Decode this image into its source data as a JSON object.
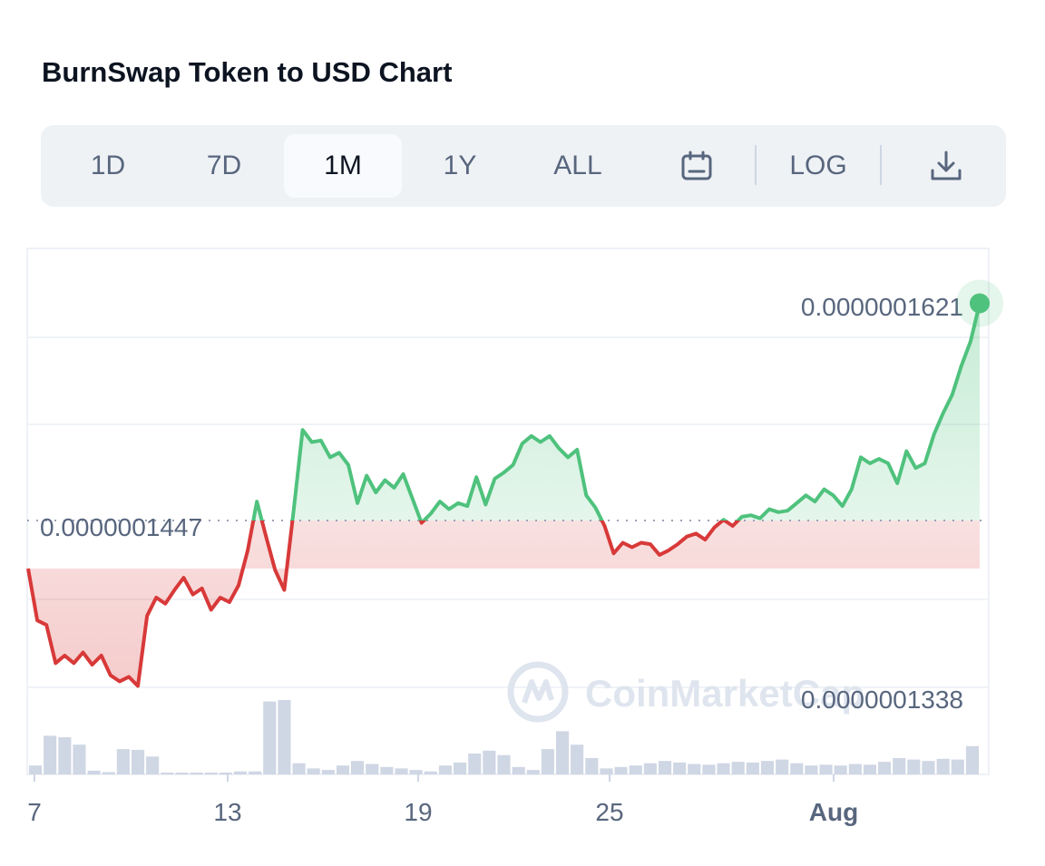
{
  "header": {
    "title": "BurnSwap Token to USD Chart"
  },
  "toolbar": {
    "ranges": [
      "1D",
      "7D",
      "1M",
      "1Y",
      "ALL"
    ],
    "active_range": "1M",
    "calendar_icon": "calendar-icon",
    "log_label": "LOG",
    "download_icon": "download-icon"
  },
  "chart_data": {
    "type": "area",
    "title": "BurnSwap Token to USD Chart",
    "x_tick_labels": [
      "7",
      "13",
      "19",
      "25",
      "Aug"
    ],
    "reference_label": "0.0000001447",
    "reference_value": 1.447e-07,
    "current_label": "0.0000001621",
    "current_value": 1.621e-07,
    "low_label": "0.0000001338",
    "low_value": 1.338e-07,
    "ylim": [
      1.312e-07,
      1.657e-07
    ],
    "grid": true,
    "colors": {
      "up": "#4fc27d",
      "down": "#d83939",
      "volume": "#cfd6e4",
      "reference": "#9aa3b5",
      "watermark": "#dfe5ee"
    },
    "watermark": "CoinMarketCap",
    "series": [
      {
        "values": [
          1.447e-07,
          1.413e-07,
          1.41e-07,
          1.385e-07,
          1.39e-07,
          1.385e-07,
          1.392e-07,
          1.384e-07,
          1.39e-07,
          1.377e-07,
          1.373e-07,
          1.376e-07,
          1.37e-07,
          1.416e-07,
          1.428e-07,
          1.424e-07,
          1.433e-07,
          1.441e-07,
          1.43e-07,
          1.434e-07,
          1.42e-07,
          1.428e-07,
          1.425e-07,
          1.436e-07,
          1.459e-07,
          1.491e-07,
          1.468e-07,
          1.446e-07,
          1.433e-07,
          1.484e-07,
          1.538e-07,
          1.53e-07,
          1.531e-07,
          1.52e-07,
          1.523e-07,
          1.515e-07,
          1.49e-07,
          1.508e-07,
          1.497e-07,
          1.505e-07,
          1.5e-07,
          1.509e-07,
          1.493e-07,
          1.477e-07,
          1.483e-07,
          1.491e-07,
          1.486e-07,
          1.49e-07,
          1.488e-07,
          1.507e-07,
          1.489e-07,
          1.506e-07,
          1.51e-07,
          1.515e-07,
          1.529e-07,
          1.534e-07,
          1.53e-07,
          1.534e-07,
          1.526e-07,
          1.52e-07,
          1.525e-07,
          1.495e-07,
          1.487e-07,
          1.475e-07,
          1.457e-07,
          1.464e-07,
          1.461e-07,
          1.464e-07,
          1.463e-07,
          1.456e-07,
          1.459e-07,
          1.463e-07,
          1.468e-07,
          1.47e-07,
          1.466e-07,
          1.474e-07,
          1.479e-07,
          1.475e-07,
          1.481e-07,
          1.482e-07,
          1.48e-07,
          1.486e-07,
          1.484e-07,
          1.485e-07,
          1.49e-07,
          1.495e-07,
          1.491e-07,
          1.499e-07,
          1.495e-07,
          1.488e-07,
          1.499e-07,
          1.52e-07,
          1.516e-07,
          1.519e-07,
          1.516e-07,
          1.503e-07,
          1.524e-07,
          1.513e-07,
          1.516e-07,
          1.535e-07,
          1.549e-07,
          1.561e-07,
          1.58e-07,
          1.596e-07,
          1.621e-07
        ]
      }
    ],
    "volume": [
      0.12,
      0.52,
      0.5,
      0.4,
      0.05,
      0.03,
      0.34,
      0.33,
      0.24,
      0.02,
      0.01,
      0.02,
      0.02,
      0.01,
      0.04,
      0.04,
      0.98,
      1.0,
      0.15,
      0.08,
      0.06,
      0.12,
      0.18,
      0.14,
      0.1,
      0.08,
      0.06,
      0.04,
      0.12,
      0.16,
      0.28,
      0.32,
      0.26,
      0.1,
      0.06,
      0.34,
      0.58,
      0.4,
      0.22,
      0.08,
      0.1,
      0.12,
      0.15,
      0.18,
      0.16,
      0.14,
      0.13,
      0.15,
      0.17,
      0.16,
      0.18,
      0.2,
      0.15,
      0.12,
      0.13,
      0.12,
      0.14,
      0.13,
      0.17,
      0.22,
      0.2,
      0.18,
      0.21,
      0.2,
      0.38
    ]
  }
}
